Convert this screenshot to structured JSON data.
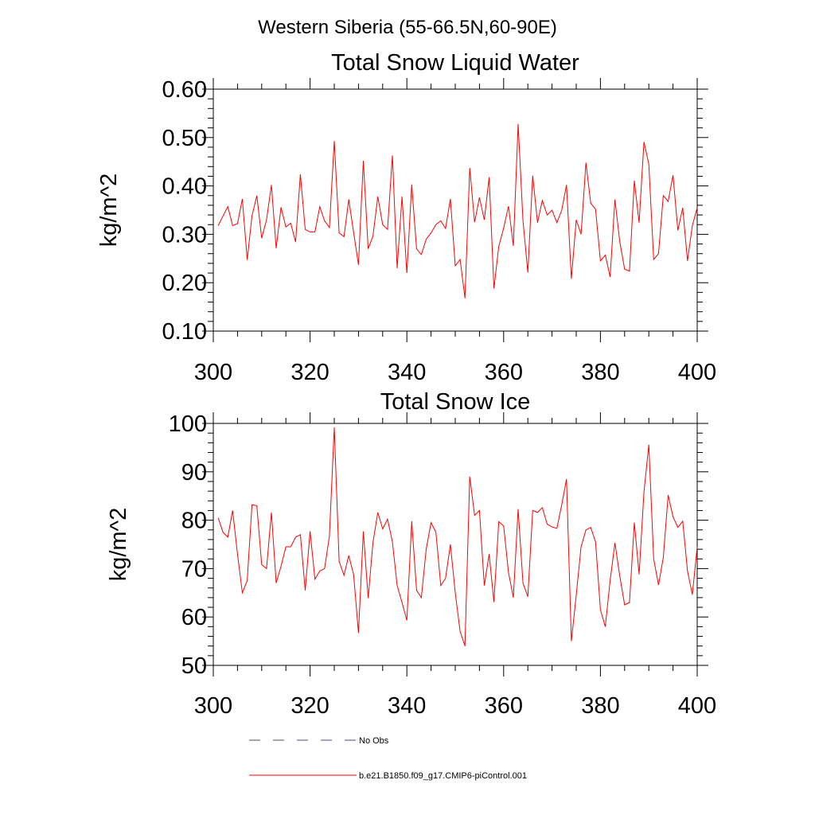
{
  "figure": {
    "main_title": "Western Siberia (55-66.5N,60-90E)"
  },
  "legend": {
    "obs_label": "No Obs",
    "obs_color": "#4a4a8a",
    "model_label": "b.e21.B1850.f09_g17.CMIP6-piControl.001",
    "model_color": "#ff0000"
  },
  "chart_data": [
    {
      "type": "line",
      "title": "Total Snow Liquid Water",
      "xlabel": "",
      "ylabel": "kg/m^2",
      "xlim": [
        300,
        400
      ],
      "ylim": [
        0.1,
        0.6
      ],
      "xticks": [
        300,
        320,
        340,
        360,
        380,
        400
      ],
      "xtick_labels": [
        "300",
        "320",
        "340",
        "360",
        "380",
        "400"
      ],
      "yticks": [
        0.1,
        0.2,
        0.3,
        0.4,
        0.5,
        0.6
      ],
      "ytick_labels": [
        "0.10",
        "0.20",
        "0.30",
        "0.40",
        "0.50",
        "0.60"
      ],
      "grid": false,
      "series": [
        {
          "name": "b.e21.B1850.f09_g17.CMIP6-piControl.001",
          "color": "#ff0000",
          "x": [
            301,
            302,
            303,
            304,
            305,
            306,
            307,
            308,
            309,
            310,
            311,
            312,
            313,
            314,
            315,
            316,
            317,
            318,
            319,
            320,
            321,
            322,
            323,
            324,
            325,
            326,
            327,
            328,
            329,
            330,
            331,
            332,
            333,
            334,
            335,
            336,
            337,
            338,
            339,
            340,
            341,
            342,
            343,
            344,
            345,
            346,
            347,
            348,
            349,
            350,
            351,
            352,
            353,
            354,
            355,
            356,
            357,
            358,
            359,
            360,
            361,
            362,
            363,
            364,
            365,
            366,
            367,
            368,
            369,
            370,
            371,
            372,
            373,
            374,
            375,
            376,
            377,
            378,
            379,
            380,
            381,
            382,
            383,
            384,
            385,
            386,
            387,
            388,
            389,
            390,
            391,
            392,
            393,
            394,
            395,
            396,
            397,
            398,
            399,
            400
          ],
          "values": [
            0.318,
            0.338,
            0.357,
            0.318,
            0.322,
            0.373,
            0.247,
            0.338,
            0.38,
            0.292,
            0.33,
            0.402,
            0.271,
            0.356,
            0.315,
            0.323,
            0.284,
            0.424,
            0.31,
            0.305,
            0.305,
            0.357,
            0.328,
            0.314,
            0.493,
            0.303,
            0.295,
            0.372,
            0.304,
            0.237,
            0.452,
            0.27,
            0.296,
            0.378,
            0.32,
            0.31,
            0.463,
            0.23,
            0.378,
            0.22,
            0.403,
            0.27,
            0.258,
            0.29,
            0.303,
            0.32,
            0.328,
            0.312,
            0.373,
            0.235,
            0.248,
            0.168,
            0.437,
            0.325,
            0.376,
            0.33,
            0.418,
            0.188,
            0.275,
            0.313,
            0.358,
            0.276,
            0.528,
            0.328,
            0.221,
            0.421,
            0.324,
            0.37,
            0.34,
            0.35,
            0.324,
            0.35,
            0.402,
            0.208,
            0.33,
            0.3,
            0.448,
            0.364,
            0.352,
            0.245,
            0.257,
            0.212,
            0.372,
            0.285,
            0.228,
            0.224,
            0.411,
            0.324,
            0.491,
            0.445,
            0.248,
            0.26,
            0.38,
            0.368,
            0.422,
            0.308,
            0.355,
            0.245,
            0.318,
            0.355
          ]
        }
      ]
    },
    {
      "type": "line",
      "title": "Total Snow Ice",
      "xlabel": "",
      "ylabel": "kg/m^2",
      "xlim": [
        300,
        400
      ],
      "ylim": [
        50,
        100
      ],
      "xticks": [
        300,
        320,
        340,
        360,
        380,
        400
      ],
      "xtick_labels": [
        "300",
        "320",
        "340",
        "360",
        "380",
        "400"
      ],
      "yticks": [
        50,
        60,
        70,
        80,
        90,
        100
      ],
      "ytick_labels": [
        "50",
        "60",
        "70",
        "80",
        "90",
        "100"
      ],
      "grid": false,
      "series": [
        {
          "name": "b.e21.B1850.f09_g17.CMIP6-piControl.001",
          "color": "#ff0000",
          "x": [
            301,
            302,
            303,
            304,
            305,
            306,
            307,
            308,
            309,
            310,
            311,
            312,
            313,
            314,
            315,
            316,
            317,
            318,
            319,
            320,
            321,
            322,
            323,
            324,
            325,
            326,
            327,
            328,
            329,
            330,
            331,
            332,
            333,
            334,
            335,
            336,
            337,
            338,
            339,
            340,
            341,
            342,
            343,
            344,
            345,
            346,
            347,
            348,
            349,
            350,
            351,
            352,
            353,
            354,
            355,
            356,
            357,
            358,
            359,
            360,
            361,
            362,
            363,
            364,
            365,
            366,
            367,
            368,
            369,
            370,
            371,
            372,
            373,
            374,
            375,
            376,
            377,
            378,
            379,
            380,
            381,
            382,
            383,
            384,
            385,
            386,
            387,
            388,
            389,
            390,
            391,
            392,
            393,
            394,
            395,
            396,
            397,
            398,
            399,
            400
          ],
          "values": [
            80.5,
            77.5,
            76.5,
            82.0,
            73.0,
            65.0,
            67.5,
            83.2,
            83.0,
            70.8,
            70.0,
            81.6,
            67.0,
            70.5,
            74.5,
            74.5,
            76.5,
            77.0,
            65.5,
            77.7,
            67.8,
            69.5,
            70.0,
            76.7,
            99.2,
            71.5,
            68.6,
            72.7,
            68.8,
            56.7,
            77.7,
            63.9,
            75.4,
            81.6,
            78.2,
            80.2,
            75.6,
            66.5,
            63.0,
            59.3,
            79.8,
            65.5,
            64.0,
            74.0,
            79.5,
            77.5,
            66.5,
            68.0,
            75.0,
            65.0,
            57.0,
            54.0,
            89.0,
            81.0,
            82.0,
            66.5,
            73.0,
            63.1,
            79.7,
            78.8,
            69.2,
            64.0,
            82.3,
            67.0,
            64.2,
            82.0,
            81.6,
            82.6,
            79.2,
            78.6,
            78.3,
            83.2,
            88.5,
            55.0,
            64.5,
            74.5,
            78.0,
            78.5,
            75.5,
            61.5,
            58.0,
            67.5,
            75.3,
            68.5,
            62.5,
            63.0,
            79.5,
            68.8,
            85.8,
            95.6,
            72.0,
            66.6,
            72.3,
            85.2,
            80.7,
            78.5,
            79.8,
            69.5,
            64.6,
            74.5
          ]
        }
      ]
    }
  ]
}
